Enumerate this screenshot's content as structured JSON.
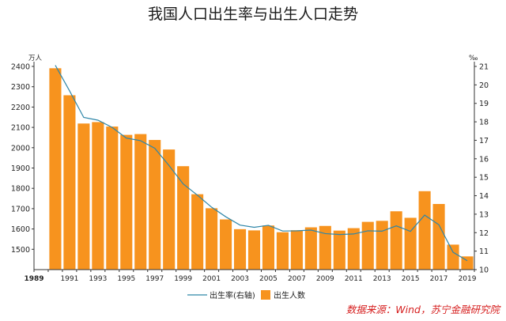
{
  "chart_data": {
    "type": "bar+line",
    "title": "我国人口出生率与出生人口走势",
    "left_unit": "万人",
    "right_unit": "‰",
    "x": [
      1990,
      1991,
      1992,
      1993,
      1994,
      1995,
      1996,
      1997,
      1998,
      1999,
      2000,
      2001,
      2002,
      2003,
      2004,
      2005,
      2006,
      2007,
      2008,
      2009,
      2010,
      2011,
      2012,
      2013,
      2014,
      2015,
      2016,
      2017,
      2018,
      2019
    ],
    "x_tick_labels": [
      "1989",
      "1991",
      "1993",
      "1995",
      "1997",
      "1999",
      "2001",
      "2003",
      "2005",
      "2007",
      "2009",
      "2011",
      "2013",
      "2015",
      "2017",
      "2019"
    ],
    "x_first_label_year": 1989,
    "ylim_left": [
      1400,
      2400
    ],
    "yticks_left": [
      "1500",
      "1600",
      "1700",
      "1800",
      "1900",
      "2000",
      "2100",
      "2200",
      "2300",
      "2400"
    ],
    "ylim_right": [
      10,
      21
    ],
    "yticks_right": [
      "10",
      "11",
      "12",
      "13",
      "14",
      "15",
      "16",
      "17",
      "18",
      "19",
      "20",
      "21"
    ],
    "series": [
      {
        "name": "出生人数",
        "axis": "left",
        "kind": "bar",
        "color": "#f7931e",
        "values": [
          2391,
          2258,
          2119,
          2126,
          2104,
          2063,
          2067,
          2038,
          1991,
          1909,
          1771,
          1702,
          1647,
          1599,
          1593,
          1617,
          1584,
          1594,
          1608,
          1615,
          1592,
          1604,
          1635,
          1640,
          1687,
          1655,
          1786,
          1723,
          1523,
          1465
        ]
      },
      {
        "name": "出生率(右轴)",
        "axis": "right",
        "kind": "line",
        "color": "#2e86a8",
        "values": [
          21.06,
          19.68,
          18.24,
          18.09,
          17.7,
          17.12,
          16.98,
          16.57,
          15.64,
          14.64,
          14.03,
          13.38,
          12.86,
          12.41,
          12.29,
          12.4,
          12.09,
          12.1,
          12.14,
          11.95,
          11.9,
          11.93,
          12.1,
          12.08,
          12.37,
          12.07,
          12.95,
          12.43,
          10.94,
          10.48
        ]
      }
    ],
    "grid": false,
    "legend_position": "bottom"
  },
  "source": "数据来源：Wind，苏宁金融研究院"
}
